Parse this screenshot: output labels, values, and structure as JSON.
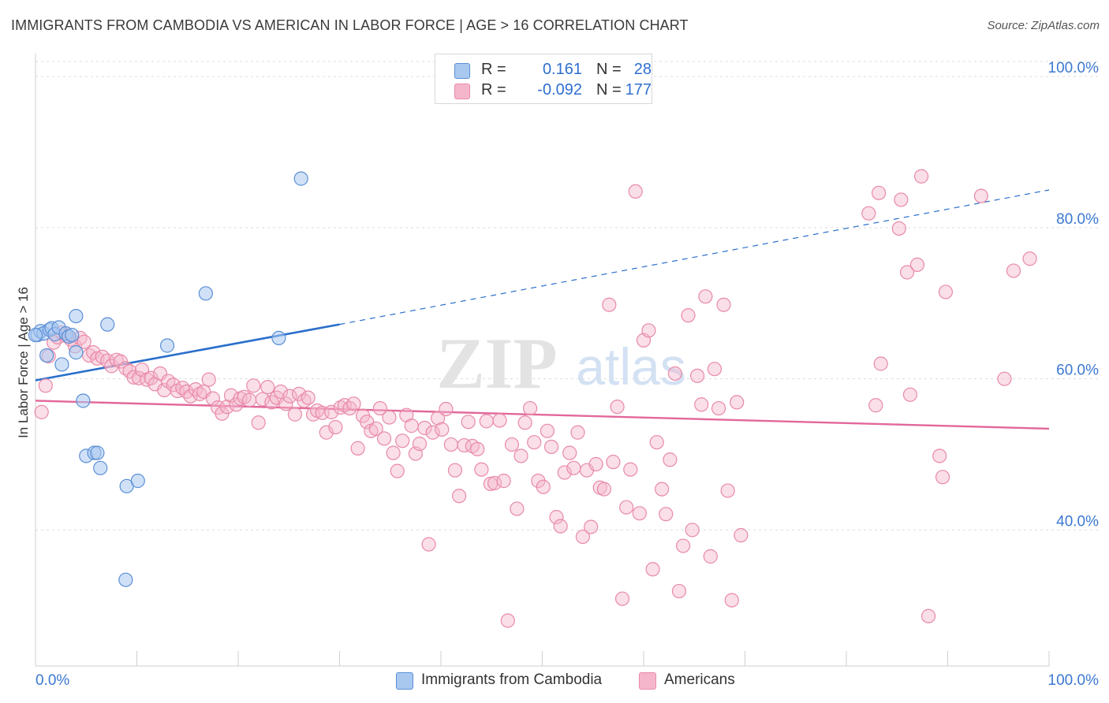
{
  "header": {
    "title": "IMMIGRANTS FROM CAMBODIA VS AMERICAN IN LABOR FORCE | AGE > 16 CORRELATION CHART",
    "source": "Source: ZipAtlas.com"
  },
  "watermark": {
    "zip": "ZIP",
    "atlas": "atlas"
  },
  "legend": {
    "rows": [
      {
        "r_label": "R =",
        "r_value": "0.161",
        "n_label": "N =",
        "n_value": "28",
        "color": "#a9c8f0"
      },
      {
        "r_label": "R =",
        "r_value": "-0.092",
        "n_label": "N =",
        "n_value": "177",
        "color": "#f5b6cb"
      }
    ]
  },
  "bottom_legend": {
    "series1": "Immigrants from Cambodia",
    "series2": "Americans"
  },
  "colors": {
    "blue_fill": "#a9c8f0",
    "blue_stroke": "#5b8fd6",
    "blue_line": "#2a6fcc",
    "pink_fill": "#f5b6cb",
    "pink_stroke": "#e88aa8",
    "pink_line": "#e2679a",
    "tick_label": "#3b78d0",
    "grid": "#dddddd"
  },
  "chart_data": {
    "type": "scatter",
    "title": "IMMIGRANTS FROM CAMBODIA VS AMERICAN IN LABOR FORCE | AGE > 16 CORRELATION CHART",
    "xlabel": "",
    "ylabel": "In Labor Force | Age > 16",
    "xlim": [
      0,
      100
    ],
    "ylim": [
      22,
      102
    ],
    "x_tick_labels": [
      "0.0%",
      "100.0%"
    ],
    "y_ticks": [
      40,
      60,
      80,
      100
    ],
    "y_tick_labels": [
      "40.0%",
      "60.0%",
      "80.0%",
      "100.0%"
    ],
    "grid": true,
    "legend_position": "top-center",
    "series": [
      {
        "name": "Immigrants from Cambodia",
        "r": 0.161,
        "n": 28,
        "trend": {
          "x0": 0,
          "y0": 59.8,
          "x1": 30,
          "y1": 67.2,
          "dashed_to_x": 100,
          "dashed_to_y": 85.0
        },
        "points": [
          [
            0.2,
            65.8
          ],
          [
            0.5,
            66.3
          ],
          [
            0.8,
            66.0
          ],
          [
            1.1,
            63.1
          ],
          [
            1.4,
            66.5
          ],
          [
            1.6,
            66.7
          ],
          [
            1.9,
            65.9
          ],
          [
            2.3,
            66.8
          ],
          [
            2.6,
            61.9
          ],
          [
            3.0,
            66.0
          ],
          [
            3.3,
            65.6
          ],
          [
            3.6,
            65.8
          ],
          [
            4.0,
            68.3
          ],
          [
            4.0,
            63.5
          ],
          [
            4.7,
            57.1
          ],
          [
            5.0,
            49.8
          ],
          [
            5.8,
            50.2
          ],
          [
            6.1,
            50.2
          ],
          [
            6.4,
            48.2
          ],
          [
            7.1,
            67.2
          ],
          [
            9.0,
            45.8
          ],
          [
            10.1,
            46.5
          ],
          [
            8.9,
            33.4
          ],
          [
            13.0,
            64.4
          ],
          [
            16.8,
            71.3
          ],
          [
            24.0,
            65.4
          ],
          [
            26.2,
            86.5
          ],
          [
            0.0,
            65.8
          ]
        ]
      },
      {
        "name": "Americans",
        "r": -0.092,
        "n": 177,
        "trend": {
          "x0": 0,
          "y0": 57.1,
          "x1": 100,
          "y1": 53.4
        },
        "points": [
          [
            0.6,
            55.6
          ],
          [
            1.0,
            59.1
          ],
          [
            1.3,
            63.0
          ],
          [
            1.8,
            64.8
          ],
          [
            2.2,
            65.5
          ],
          [
            2.6,
            66.1
          ],
          [
            3.0,
            65.7
          ],
          [
            3.5,
            65.2
          ],
          [
            3.9,
            64.3
          ],
          [
            4.4,
            65.4
          ],
          [
            4.8,
            64.9
          ],
          [
            5.3,
            63.1
          ],
          [
            5.7,
            63.5
          ],
          [
            6.1,
            62.7
          ],
          [
            6.6,
            62.9
          ],
          [
            7.1,
            62.4
          ],
          [
            7.5,
            61.7
          ],
          [
            8.0,
            62.5
          ],
          [
            8.4,
            62.3
          ],
          [
            8.9,
            61.4
          ],
          [
            9.3,
            61.0
          ],
          [
            9.7,
            60.2
          ],
          [
            10.2,
            60.1
          ],
          [
            10.5,
            61.2
          ],
          [
            11.0,
            59.9
          ],
          [
            11.4,
            60.1
          ],
          [
            11.8,
            59.3
          ],
          [
            12.3,
            60.7
          ],
          [
            12.7,
            58.5
          ],
          [
            13.1,
            59.7
          ],
          [
            13.6,
            59.2
          ],
          [
            14.0,
            58.4
          ],
          [
            14.5,
            58.8
          ],
          [
            14.9,
            58.3
          ],
          [
            15.3,
            57.7
          ],
          [
            15.8,
            58.6
          ],
          [
            16.2,
            58.0
          ],
          [
            16.6,
            58.3
          ],
          [
            17.1,
            59.9
          ],
          [
            17.5,
            57.4
          ],
          [
            18.0,
            56.2
          ],
          [
            18.4,
            55.4
          ],
          [
            18.9,
            56.3
          ],
          [
            19.3,
            57.8
          ],
          [
            19.8,
            56.6
          ],
          [
            20.2,
            57.4
          ],
          [
            20.6,
            57.6
          ],
          [
            21.1,
            57.2
          ],
          [
            21.5,
            59.1
          ],
          [
            22.0,
            54.2
          ],
          [
            22.4,
            57.3
          ],
          [
            22.9,
            58.9
          ],
          [
            23.3,
            56.9
          ],
          [
            23.8,
            57.5
          ],
          [
            24.2,
            58.3
          ],
          [
            24.7,
            56.7
          ],
          [
            25.1,
            57.7
          ],
          [
            25.6,
            55.3
          ],
          [
            26.0,
            58.0
          ],
          [
            26.5,
            57.1
          ],
          [
            26.9,
            57.5
          ],
          [
            27.4,
            55.3
          ],
          [
            27.8,
            55.8
          ],
          [
            28.3,
            55.5
          ],
          [
            28.7,
            52.9
          ],
          [
            29.2,
            55.6
          ],
          [
            29.6,
            53.6
          ],
          [
            30.1,
            56.2
          ],
          [
            30.5,
            56.5
          ],
          [
            31.0,
            56.1
          ],
          [
            31.4,
            56.7
          ],
          [
            31.8,
            50.8
          ],
          [
            32.3,
            55.1
          ],
          [
            32.7,
            54.3
          ],
          [
            33.1,
            53.1
          ],
          [
            33.6,
            53.4
          ],
          [
            34.0,
            56.1
          ],
          [
            34.4,
            52.1
          ],
          [
            34.9,
            54.9
          ],
          [
            35.3,
            50.2
          ],
          [
            35.7,
            47.8
          ],
          [
            36.2,
            51.8
          ],
          [
            36.6,
            55.2
          ],
          [
            37.1,
            53.8
          ],
          [
            37.5,
            50.1
          ],
          [
            37.9,
            51.4
          ],
          [
            38.4,
            53.5
          ],
          [
            38.8,
            38.1
          ],
          [
            39.2,
            52.9
          ],
          [
            39.7,
            54.8
          ],
          [
            40.1,
            53.3
          ],
          [
            40.5,
            56.0
          ],
          [
            41.0,
            51.3
          ],
          [
            41.4,
            47.9
          ],
          [
            41.8,
            44.5
          ],
          [
            42.3,
            51.2
          ],
          [
            42.7,
            54.3
          ],
          [
            43.1,
            51.1
          ],
          [
            43.6,
            50.7
          ],
          [
            44.0,
            48.0
          ],
          [
            44.5,
            54.4
          ],
          [
            44.9,
            46.1
          ],
          [
            45.3,
            46.2
          ],
          [
            45.8,
            54.5
          ],
          [
            46.2,
            46.5
          ],
          [
            46.6,
            28.0
          ],
          [
            47.0,
            51.3
          ],
          [
            47.5,
            42.8
          ],
          [
            47.9,
            49.8
          ],
          [
            48.3,
            54.2
          ],
          [
            48.8,
            56.1
          ],
          [
            49.2,
            51.6
          ],
          [
            49.6,
            46.5
          ],
          [
            50.1,
            45.7
          ],
          [
            50.5,
            53.1
          ],
          [
            50.9,
            51.0
          ],
          [
            51.4,
            41.7
          ],
          [
            51.8,
            40.5
          ],
          [
            52.2,
            47.6
          ],
          [
            52.7,
            50.2
          ],
          [
            53.1,
            48.2
          ],
          [
            53.5,
            52.9
          ],
          [
            54.0,
            39.1
          ],
          [
            54.4,
            47.9
          ],
          [
            54.8,
            40.4
          ],
          [
            55.3,
            48.7
          ],
          [
            55.7,
            45.6
          ],
          [
            56.1,
            45.4
          ],
          [
            56.6,
            69.8
          ],
          [
            57.0,
            49.0
          ],
          [
            57.4,
            56.3
          ],
          [
            57.9,
            30.9
          ],
          [
            58.3,
            43.0
          ],
          [
            58.7,
            48.0
          ],
          [
            59.2,
            84.8
          ],
          [
            59.6,
            42.2
          ],
          [
            60.0,
            65.1
          ],
          [
            60.5,
            66.4
          ],
          [
            60.9,
            34.8
          ],
          [
            61.3,
            51.6
          ],
          [
            61.8,
            45.4
          ],
          [
            62.2,
            42.1
          ],
          [
            62.6,
            49.3
          ],
          [
            63.1,
            60.7
          ],
          [
            63.5,
            31.9
          ],
          [
            63.9,
            37.9
          ],
          [
            64.4,
            68.4
          ],
          [
            64.8,
            40.0
          ],
          [
            65.3,
            60.4
          ],
          [
            65.7,
            56.6
          ],
          [
            66.1,
            70.9
          ],
          [
            66.6,
            36.5
          ],
          [
            67.0,
            61.3
          ],
          [
            67.4,
            56.1
          ],
          [
            67.9,
            69.8
          ],
          [
            68.3,
            45.2
          ],
          [
            68.7,
            30.7
          ],
          [
            69.2,
            56.9
          ],
          [
            69.6,
            39.3
          ],
          [
            85.4,
            83.7
          ],
          [
            82.2,
            81.9
          ],
          [
            83.2,
            84.6
          ],
          [
            85.2,
            79.9
          ],
          [
            86.0,
            74.1
          ],
          [
            87.4,
            86.8
          ],
          [
            87.0,
            75.1
          ],
          [
            93.3,
            84.2
          ],
          [
            95.6,
            60.0
          ],
          [
            89.8,
            71.5
          ],
          [
            89.2,
            49.8
          ],
          [
            98.1,
            75.9
          ],
          [
            88.1,
            28.6
          ],
          [
            89.5,
            47.0
          ],
          [
            96.5,
            74.3
          ],
          [
            86.3,
            57.9
          ],
          [
            83.4,
            62.0
          ],
          [
            82.9,
            56.5
          ]
        ]
      }
    ]
  }
}
